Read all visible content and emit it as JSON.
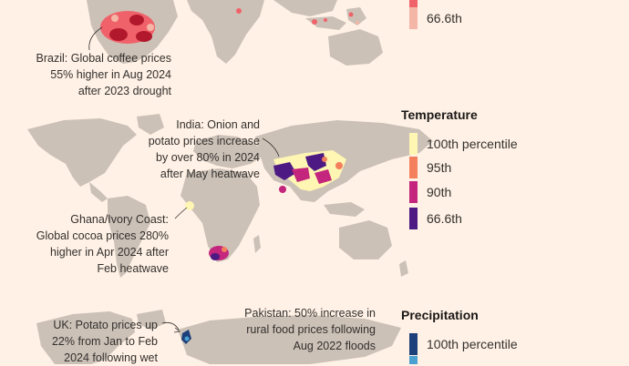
{
  "annotations": {
    "brazil": [
      "Brazil: Global coffee prices",
      "55% higher in Aug 2024",
      "after 2023 drought"
    ],
    "india": [
      "India: Onion and",
      "potato prices increase",
      "by over 80% in 2024",
      "after May heatwave"
    ],
    "ghana": [
      "Ghana/Ivory Coast:",
      "Global cocoa prices 280%",
      "higher in Apr 2024 after",
      "Feb heatwave"
    ],
    "uk": [
      "UK: Potato prices up",
      "22% from Jan to Feb",
      "2024 following wet"
    ],
    "pakistan": [
      "Pakistan: 50% increase in",
      "rural food prices following",
      "Aug 2022 floods"
    ]
  },
  "legends": {
    "drought": {
      "items": [
        {
          "label": "",
          "color": "#f0626a"
        },
        {
          "label": "66.6th",
          "color": "#f4b6a6"
        }
      ]
    },
    "temperature": {
      "title": "Temperature",
      "items": [
        {
          "label": "100th percentile",
          "color": "#fff6b3"
        },
        {
          "label": "95th",
          "color": "#f47f5c"
        },
        {
          "label": "90th",
          "color": "#c3267c"
        },
        {
          "label": "66.6th",
          "color": "#4c1a82"
        }
      ]
    },
    "precipitation": {
      "title": "Precipitation",
      "items": [
        {
          "label": "100th percentile",
          "color": "#1d3f7a"
        },
        {
          "label": "",
          "color": "#4aa0d0"
        }
      ]
    }
  },
  "colors": {
    "background": "#fff1e5",
    "land": "#ccc1b7",
    "text": "#33302e"
  }
}
